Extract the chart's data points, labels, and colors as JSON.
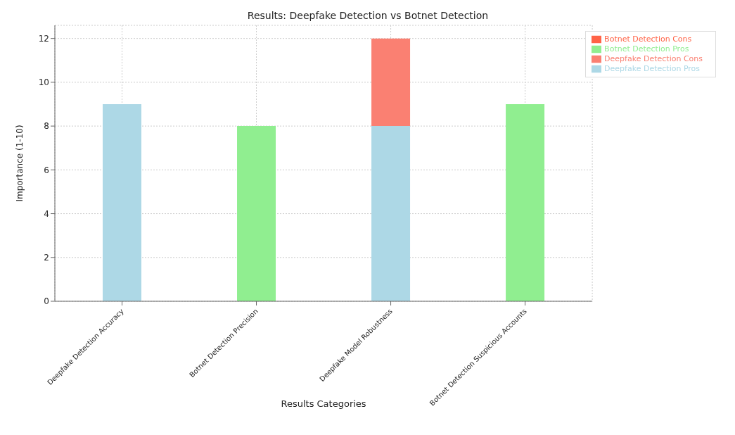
{
  "chart_data": {
    "type": "bar",
    "title": "Results: Deepfake Detection vs Botnet Detection",
    "xlabel": "Results Categories",
    "ylabel": "Importance (1-10)",
    "categories": [
      "Deepfake Detection Accuracy",
      "Botnet Detection Precision",
      "Deepfake Model Robustness",
      "Botnet Detection Suspicious Accounts"
    ],
    "series": [
      {
        "name": "Deepfake Detection Pros",
        "color": "#add8e6",
        "values": [
          9,
          0,
          8,
          0
        ]
      },
      {
        "name": "Deepfake Detection Cons",
        "color": "#fa8072",
        "values": [
          0,
          0,
          4,
          0
        ]
      },
      {
        "name": "Botnet Detection Pros",
        "color": "#90ee90",
        "values": [
          0,
          8,
          0,
          9
        ]
      },
      {
        "name": "Botnet Detection Cons",
        "color": "#ff6347",
        "values": [
          0,
          0,
          0,
          0
        ]
      }
    ],
    "stacked": true,
    "ylim": [
      0,
      12.6
    ],
    "yticks": [
      0,
      2,
      4,
      6,
      8,
      10,
      12
    ],
    "grid": true,
    "legend": "top right"
  }
}
